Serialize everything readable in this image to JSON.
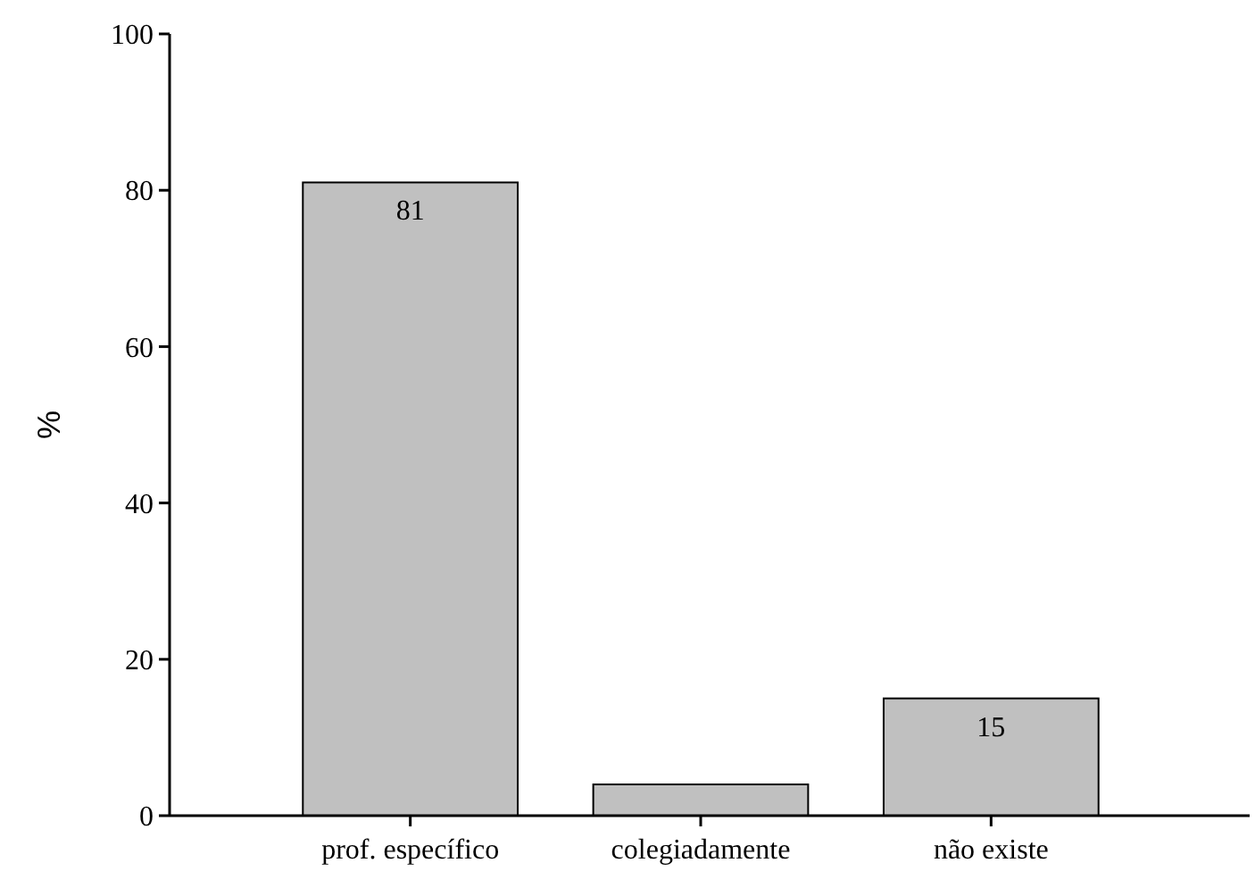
{
  "chart_data": {
    "type": "bar",
    "ylabel": "%",
    "categories": [
      "prof. específico",
      "colegiadamente",
      "não existe"
    ],
    "values": [
      81,
      4,
      15
    ],
    "value_labels": [
      "81",
      null,
      "15"
    ],
    "color": "#c0c0c0",
    "ylim": [
      0,
      100
    ],
    "yticks": [
      0,
      20,
      40,
      60,
      80,
      100
    ],
    "grid": false
  }
}
